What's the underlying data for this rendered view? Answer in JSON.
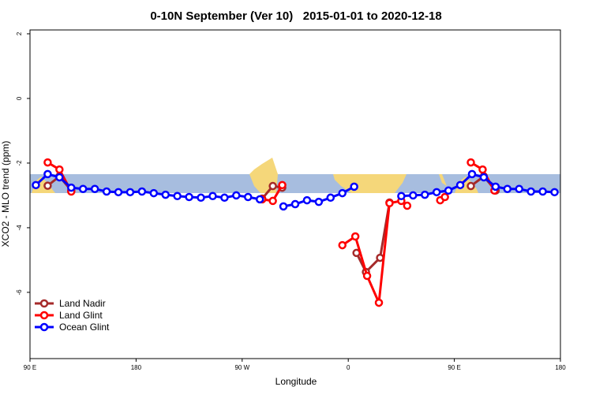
{
  "chart_data": {
    "type": "line",
    "title": "0-10N September (Ver 10)   2015-01-01 to 2020-12-18",
    "x_label": "Longitude",
    "y_label": "XCO2 - MLO trend (ppm)",
    "xlim": [
      90,
      540
    ],
    "xticks": [
      {
        "value": 90,
        "label": "90 E"
      },
      180,
      {
        "value": 270,
        "label": "90 W"
      },
      {
        "value": 360,
        "label": "0"
      },
      {
        "value": 450,
        "label": "90 E"
      },
      180
    ],
    "ylim": [
      -8.05,
      2.12
    ],
    "yticks": [
      2,
      0,
      -2,
      -4,
      -6
    ],
    "legend": "bottom-left",
    "series": [
      {
        "name": "Land Nadir",
        "color": "#a52a2a",
        "x": [
          105,
          115,
          125,
          205,
          287,
          296,
          304,
          335,
          367,
          375,
          387,
          395,
          430,
          464,
          475,
          485
        ],
        "values": [
          -2.7,
          -2.41,
          -2.85,
          null,
          -3.1,
          -2.71,
          -2.76,
          null,
          -4.78,
          -5.37,
          -4.93,
          -3.22,
          null,
          -2.71,
          -2.41,
          -2.85
        ]
      },
      {
        "name": "Land Glint",
        "color": "#ff0000",
        "x": [
          105,
          115,
          125,
          200,
          287,
          296,
          304,
          330,
          355,
          366,
          376,
          386,
          395,
          405,
          410,
          420,
          438,
          442,
          450,
          464,
          474,
          484
        ],
        "values": [
          -1.98,
          -2.2,
          -2.88,
          null,
          -3.12,
          -3.17,
          -2.68,
          null,
          -4.54,
          -4.27,
          -5.49,
          -6.32,
          -3.24,
          -3.17,
          -3.32,
          null,
          -3.15,
          -3.05,
          null,
          -1.98,
          -2.2,
          -2.85
        ]
      },
      {
        "name": "Ocean Glint",
        "color": "#0000ff",
        "x": [
          95,
          105,
          115,
          125,
          135,
          145,
          155,
          165,
          175,
          185,
          195,
          205,
          215,
          225,
          235,
          245,
          255,
          265,
          275,
          285,
          295,
          305,
          315,
          325,
          335,
          345,
          355,
          365,
          385,
          405,
          415,
          425,
          435,
          445,
          455,
          465,
          475,
          485,
          495,
          505,
          515,
          525,
          535
        ],
        "values": [
          -2.68,
          -2.34,
          -2.44,
          -2.76,
          -2.8,
          -2.8,
          -2.88,
          -2.9,
          -2.9,
          -2.88,
          -2.93,
          -2.98,
          -3.02,
          -3.05,
          -3.07,
          -3.02,
          -3.07,
          -3.0,
          -3.05,
          -3.12,
          null,
          -3.34,
          -3.27,
          -3.15,
          -3.2,
          -3.07,
          -2.93,
          -2.73,
          null,
          -3.02,
          -3.0,
          -2.98,
          -2.9,
          -2.85,
          -2.68,
          -2.34,
          -2.44,
          -2.73,
          -2.8,
          -2.8,
          -2.88,
          -2.88,
          -2.9
        ]
      }
    ]
  }
}
